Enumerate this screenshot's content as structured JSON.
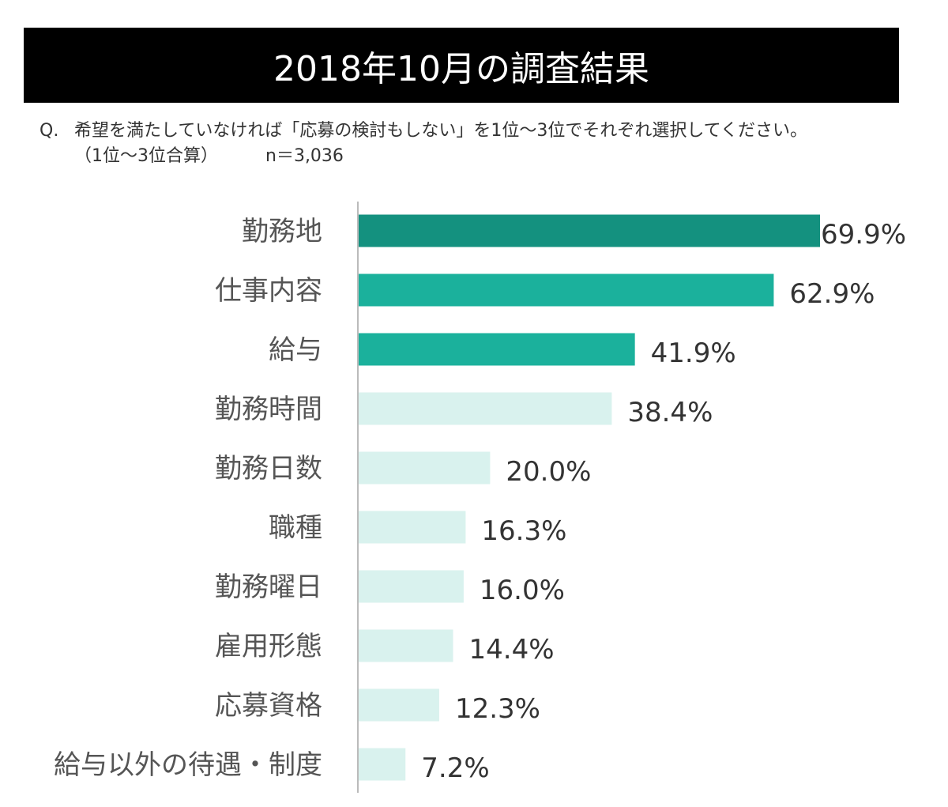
{
  "title": "2018年10月の調査結果",
  "question": {
    "prefix": "Q.",
    "line1": "希望を満たしていなければ「応募の検討もしない」を1位～3位でそれぞれ選択してください。",
    "line2": "（1位～3位合算）",
    "n": "n＝3,036"
  },
  "chart_data": {
    "type": "bar",
    "orientation": "horizontal",
    "categories": [
      "勤務地",
      "仕事内容",
      "給与",
      "勤務時間",
      "勤務日数",
      "職種",
      "勤務曜日",
      "雇用形態",
      "応募資格",
      "給与以外の待遇・制度"
    ],
    "values": [
      69.9,
      62.9,
      41.9,
      38.4,
      20.0,
      16.3,
      16.0,
      14.4,
      12.3,
      7.2
    ],
    "value_labels": [
      "69.9%",
      "62.9%",
      "41.9%",
      "38.4%",
      "20.0%",
      "16.3%",
      "16.0%",
      "14.4%",
      "12.3%",
      "7.2%"
    ],
    "unit": "%",
    "bar_colors": [
      "#14917f",
      "#1bb19c",
      "#1bb19c",
      "#d9f2ee",
      "#d9f2ee",
      "#d9f2ee",
      "#d9f2ee",
      "#d9f2ee",
      "#d9f2ee",
      "#d9f2ee"
    ],
    "grid": false,
    "legend": "none"
  }
}
